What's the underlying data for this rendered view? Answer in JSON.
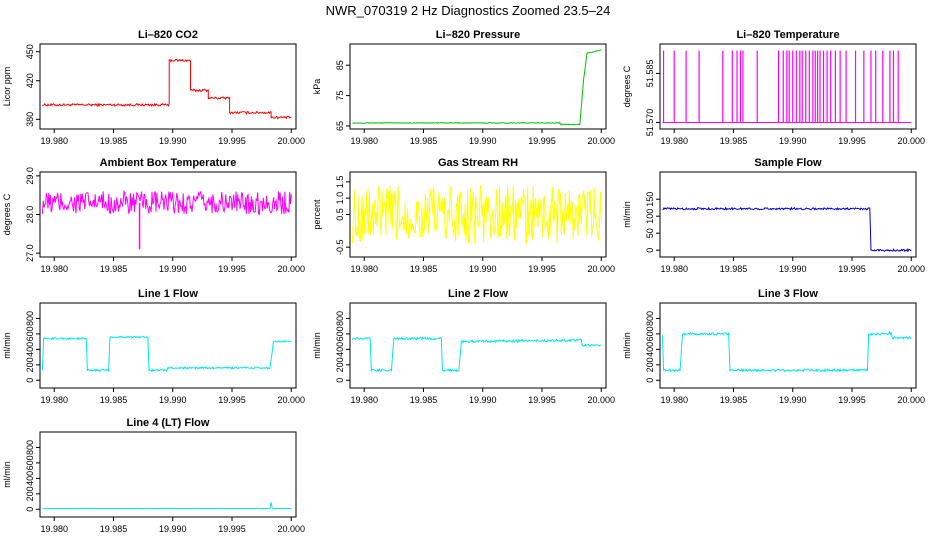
{
  "figure_title": "NWR_070319  2 Hz Diagnostics Zoomed 23.5–24",
  "chart_data": [
    {
      "type": "line",
      "title": "Li–820 CO2",
      "ylabel": "Licor ppm",
      "xlabel": "",
      "color": "#ff0000",
      "xlim": [
        19.9788,
        20.0004
      ],
      "ylim": [
        370,
        458
      ],
      "xticks": [
        "19.980",
        "19.985",
        "19.990",
        "19.995",
        "20.000"
      ],
      "yticks": [
        "380",
        "420",
        "450"
      ],
      "series": [
        {
          "name": "CO2",
          "points": [
            [
              19.979,
              395
            ],
            [
              19.9897,
              395
            ],
            [
              19.9897,
              441
            ],
            [
              19.9915,
              441
            ],
            [
              19.9915,
              410
            ],
            [
              19.993,
              410
            ],
            [
              19.993,
              402
            ],
            [
              19.9948,
              402
            ],
            [
              19.9948,
              387
            ],
            [
              19.9983,
              387
            ],
            [
              19.9983,
              382
            ],
            [
              20.0,
              382
            ]
          ]
        }
      ],
      "noise": 1.2
    },
    {
      "type": "line",
      "title": "Li–820 Pressure",
      "ylabel": "kPa",
      "xlabel": "",
      "color": "#00c000",
      "xlim": [
        19.9788,
        20.0004
      ],
      "ylim": [
        64,
        92
      ],
      "xticks": [
        "19.980",
        "19.985",
        "19.990",
        "19.995",
        "20.000"
      ],
      "yticks": [
        "65",
        "75",
        "85"
      ],
      "series": [
        {
          "name": "Pressure",
          "points": [
            [
              19.979,
              66
            ],
            [
              19.9965,
              66
            ],
            [
              19.9966,
              65.5
            ],
            [
              19.9982,
              65.5
            ],
            [
              19.9985,
              80
            ],
            [
              19.9988,
              89
            ],
            [
              20.0,
              90
            ]
          ]
        }
      ],
      "noise": 0.1
    },
    {
      "type": "line",
      "title": "Li–820 Temperature",
      "ylabel": "degrees C",
      "xlabel": "",
      "color": "#ff00ff",
      "xlim": [
        19.9788,
        20.0004
      ],
      "ylim": [
        51.568,
        51.594
      ],
      "xticks": [
        "19.980",
        "19.985",
        "19.990",
        "19.995",
        "20.000"
      ],
      "yticks": [
        "51.570",
        "51.585"
      ],
      "series": [
        {
          "name": "Temperature",
          "points": [
            [
              19.979,
              51.57
            ],
            [
              20.0,
              51.57
            ]
          ]
        }
      ],
      "spikes_to": 51.592,
      "spike_x": [
        19.9791,
        19.98,
        19.981,
        19.9821,
        19.9841,
        19.9849,
        19.9853,
        19.9856,
        19.9858,
        19.987,
        19.9888,
        19.9892,
        19.9895,
        19.9897,
        19.99,
        19.9903,
        19.9906,
        19.9908,
        19.9911,
        19.9914,
        19.9917,
        19.9919,
        19.9921,
        19.9923,
        19.9926,
        19.9929,
        19.9932,
        19.9936,
        19.994,
        19.9945,
        19.9953,
        19.996,
        19.9966,
        19.997,
        19.9976,
        19.9982,
        19.9985,
        19.9989
      ]
    },
    {
      "type": "line",
      "title": "Ambient Box Temperature",
      "ylabel": "degrees C",
      "xlabel": "",
      "color": "#ff00ff",
      "xlim": [
        19.9788,
        20.0004
      ],
      "ylim": [
        26.9,
        29.1
      ],
      "xticks": [
        "19.980",
        "19.985",
        "19.990",
        "19.995",
        "20.000"
      ],
      "yticks": [
        "27.0",
        "28.0",
        "29.0"
      ],
      "series": [
        {
          "name": "Box Temp",
          "points": [
            [
              19.979,
              28.3
            ],
            [
              19.9998,
              28.3
            ],
            [
              20.0,
              28.4
            ]
          ]
        }
      ],
      "noise": 0.3,
      "dips": [
        [
          19.9872,
          27.1
        ]
      ]
    },
    {
      "type": "line",
      "title": "Gas Stream RH",
      "ylabel": "percent",
      "xlabel": "",
      "color": "#ffff00",
      "xlim": [
        19.9788,
        20.0004
      ],
      "ylim": [
        -0.8,
        1.8
      ],
      "xticks": [
        "19.980",
        "19.985",
        "19.990",
        "19.995",
        "20.000"
      ],
      "yticks": [
        "-0.5",
        "0.5",
        "1.0",
        "1.5"
      ],
      "series": [
        {
          "name": "RH",
          "points": [
            [
              19.979,
              0.5
            ],
            [
              20.0,
              0.5
            ]
          ]
        }
      ],
      "noise": 0.9
    },
    {
      "type": "line",
      "title": "Sample Flow",
      "ylabel": "ml/min",
      "xlabel": "",
      "color": "#0000cc",
      "xlim": [
        19.9788,
        20.0004
      ],
      "ylim": [
        -20,
        230
      ],
      "xticks": [
        "19.980",
        "19.985",
        "19.990",
        "19.995",
        "20.000"
      ],
      "yticks": [
        "0",
        "50",
        "100",
        "150"
      ],
      "series": [
        {
          "name": "Sample Flow",
          "points": [
            [
              19.979,
              122
            ],
            [
              19.9965,
              122
            ],
            [
              19.9966,
              0
            ],
            [
              20.0,
              0
            ]
          ]
        }
      ],
      "noise": 3
    },
    {
      "type": "line",
      "title": "Line 1 Flow",
      "ylabel": "ml/min",
      "xlabel": "",
      "color": "#00e5ee",
      "xlim": [
        19.9788,
        20.0004
      ],
      "ylim": [
        -100,
        1000
      ],
      "xticks": [
        "19.980",
        "19.985",
        "19.990",
        "19.995",
        "20.000"
      ],
      "yticks": [
        "0",
        "200",
        "400",
        "600",
        "800"
      ],
      "series": [
        {
          "name": "Line 1",
          "points": [
            [
              19.979,
              140
            ],
            [
              19.9791,
              540
            ],
            [
              19.9827,
              540
            ],
            [
              19.9828,
              130
            ],
            [
              19.9846,
              130
            ],
            [
              19.9847,
              560
            ],
            [
              19.9879,
              560
            ],
            [
              19.988,
              130
            ],
            [
              19.9895,
              130
            ],
            [
              19.9896,
              160
            ],
            [
              19.9982,
              160
            ],
            [
              19.9985,
              500
            ],
            [
              20.0,
              500
            ]
          ]
        }
      ],
      "noise": 12
    },
    {
      "type": "line",
      "title": "Line 2 Flow",
      "ylabel": "ml/min",
      "xlabel": "",
      "color": "#00e5ee",
      "xlim": [
        19.9788,
        20.0004
      ],
      "ylim": [
        -100,
        1000
      ],
      "xticks": [
        "19.980",
        "19.985",
        "19.990",
        "19.995",
        "20.000"
      ],
      "yticks": [
        "0",
        "200",
        "400",
        "600",
        "800"
      ],
      "series": [
        {
          "name": "Line 2",
          "points": [
            [
              19.979,
              540
            ],
            [
              19.9805,
              540
            ],
            [
              19.9806,
              130
            ],
            [
              19.9823,
              130
            ],
            [
              19.9825,
              540
            ],
            [
              19.9865,
              540
            ],
            [
              19.9866,
              130
            ],
            [
              19.988,
              130
            ],
            [
              19.9882,
              500
            ],
            [
              19.9983,
              520
            ],
            [
              19.9984,
              450
            ],
            [
              20.0,
              450
            ]
          ]
        }
      ],
      "noise": 15
    },
    {
      "type": "line",
      "title": "Line 3 Flow",
      "ylabel": "ml/min",
      "xlabel": "",
      "color": "#00e5ee",
      "xlim": [
        19.9788,
        20.0004
      ],
      "ylim": [
        -100,
        1000
      ],
      "xticks": [
        "19.980",
        "19.985",
        "19.990",
        "19.995",
        "20.000"
      ],
      "yticks": [
        "0",
        "200",
        "400",
        "600",
        "800"
      ],
      "series": [
        {
          "name": "Line 3",
          "points": [
            [
              19.979,
              600
            ],
            [
              19.9791,
              130
            ],
            [
              19.9805,
              130
            ],
            [
              19.9807,
              600
            ],
            [
              19.9846,
              600
            ],
            [
              19.9847,
              130
            ],
            [
              19.9963,
              130
            ],
            [
              19.9964,
              590
            ],
            [
              19.9983,
              610
            ],
            [
              19.9984,
              550
            ],
            [
              20.0,
              550
            ]
          ]
        }
      ],
      "noise": 15
    },
    {
      "type": "line",
      "title": "Line 4 (LT) Flow",
      "ylabel": "ml/min",
      "xlabel": "",
      "color": "#00e5ee",
      "xlim": [
        19.9788,
        20.0004
      ],
      "ylim": [
        -100,
        1000
      ],
      "xticks": [
        "19.980",
        "19.985",
        "19.990",
        "19.995",
        "20.000"
      ],
      "yticks": [
        "0",
        "200",
        "400",
        "600",
        "800"
      ],
      "series": [
        {
          "name": "Line 4",
          "points": [
            [
              19.979,
              10
            ],
            [
              19.9982,
              10
            ],
            [
              19.9983,
              90
            ],
            [
              19.9984,
              10
            ],
            [
              20.0,
              10
            ]
          ]
        }
      ],
      "noise": 2
    }
  ]
}
